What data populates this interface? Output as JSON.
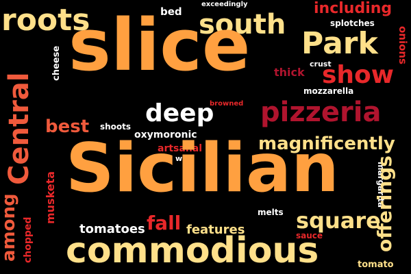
{
  "palette": {
    "background": "#000000",
    "cream": "#FFE08A",
    "orange": "#FFA040",
    "red_orange": "#F05A3C",
    "red": "#E8282A",
    "crimson": "#B0142E",
    "white": "#FFFFFF"
  },
  "words": [
    {
      "text": "roots",
      "color": "#FFE08A"
    },
    {
      "text": "bed",
      "color": "#FFFFFF"
    },
    {
      "text": "exceedingly",
      "color": "#FFFFFF"
    },
    {
      "text": "including",
      "color": "#E8282A"
    },
    {
      "text": "south",
      "color": "#FFE08A"
    },
    {
      "text": "splotches",
      "color": "#FFFFFF"
    },
    {
      "text": "onions",
      "color": "#E8282A"
    },
    {
      "text": "slice",
      "color": "#FFA040"
    },
    {
      "text": "Park",
      "color": "#FFE08A"
    },
    {
      "text": "cheese",
      "color": "#FFFFFF"
    },
    {
      "text": "Central",
      "color": "#F05A3C"
    },
    {
      "text": "crust",
      "color": "#FFFFFF"
    },
    {
      "text": "thick",
      "color": "#B0142E"
    },
    {
      "text": "show",
      "color": "#E8282A"
    },
    {
      "text": "mozzarella",
      "color": "#FFFFFF"
    },
    {
      "text": "browned",
      "color": "#E8282A"
    },
    {
      "text": "deep",
      "color": "#FFFFFF"
    },
    {
      "text": "pizzeria",
      "color": "#B0142E"
    },
    {
      "text": "best",
      "color": "#F05A3C"
    },
    {
      "text": "shoots",
      "color": "#FFFFFF"
    },
    {
      "text": "oxymoronic",
      "color": "#FFFFFF"
    },
    {
      "text": "magnificently",
      "color": "#FFE08A"
    },
    {
      "text": "artsanal",
      "color": "#E8282A"
    },
    {
      "text": "well",
      "color": "#FFFFFF"
    },
    {
      "text": "Sicilian",
      "color": "#FFA040"
    },
    {
      "text": "musketa",
      "color": "#E8282A"
    },
    {
      "text": "margarita",
      "color": "#FFFFFF"
    },
    {
      "text": "offerings",
      "color": "#FFE08A"
    },
    {
      "text": "among",
      "color": "#F05A3C"
    },
    {
      "text": "chopped",
      "color": "#E8282A"
    },
    {
      "text": "melts",
      "color": "#FFFFFF"
    },
    {
      "text": "square",
      "color": "#FFE08A"
    },
    {
      "text": "tomatoes",
      "color": "#FFFFFF"
    },
    {
      "text": "fall",
      "color": "#E8282A"
    },
    {
      "text": "features",
      "color": "#FFE08A"
    },
    {
      "text": "sauce",
      "color": "#E8282A"
    },
    {
      "text": "commodious",
      "color": "#FFE08A"
    },
    {
      "text": "tomato",
      "color": "#FFE08A"
    }
  ]
}
